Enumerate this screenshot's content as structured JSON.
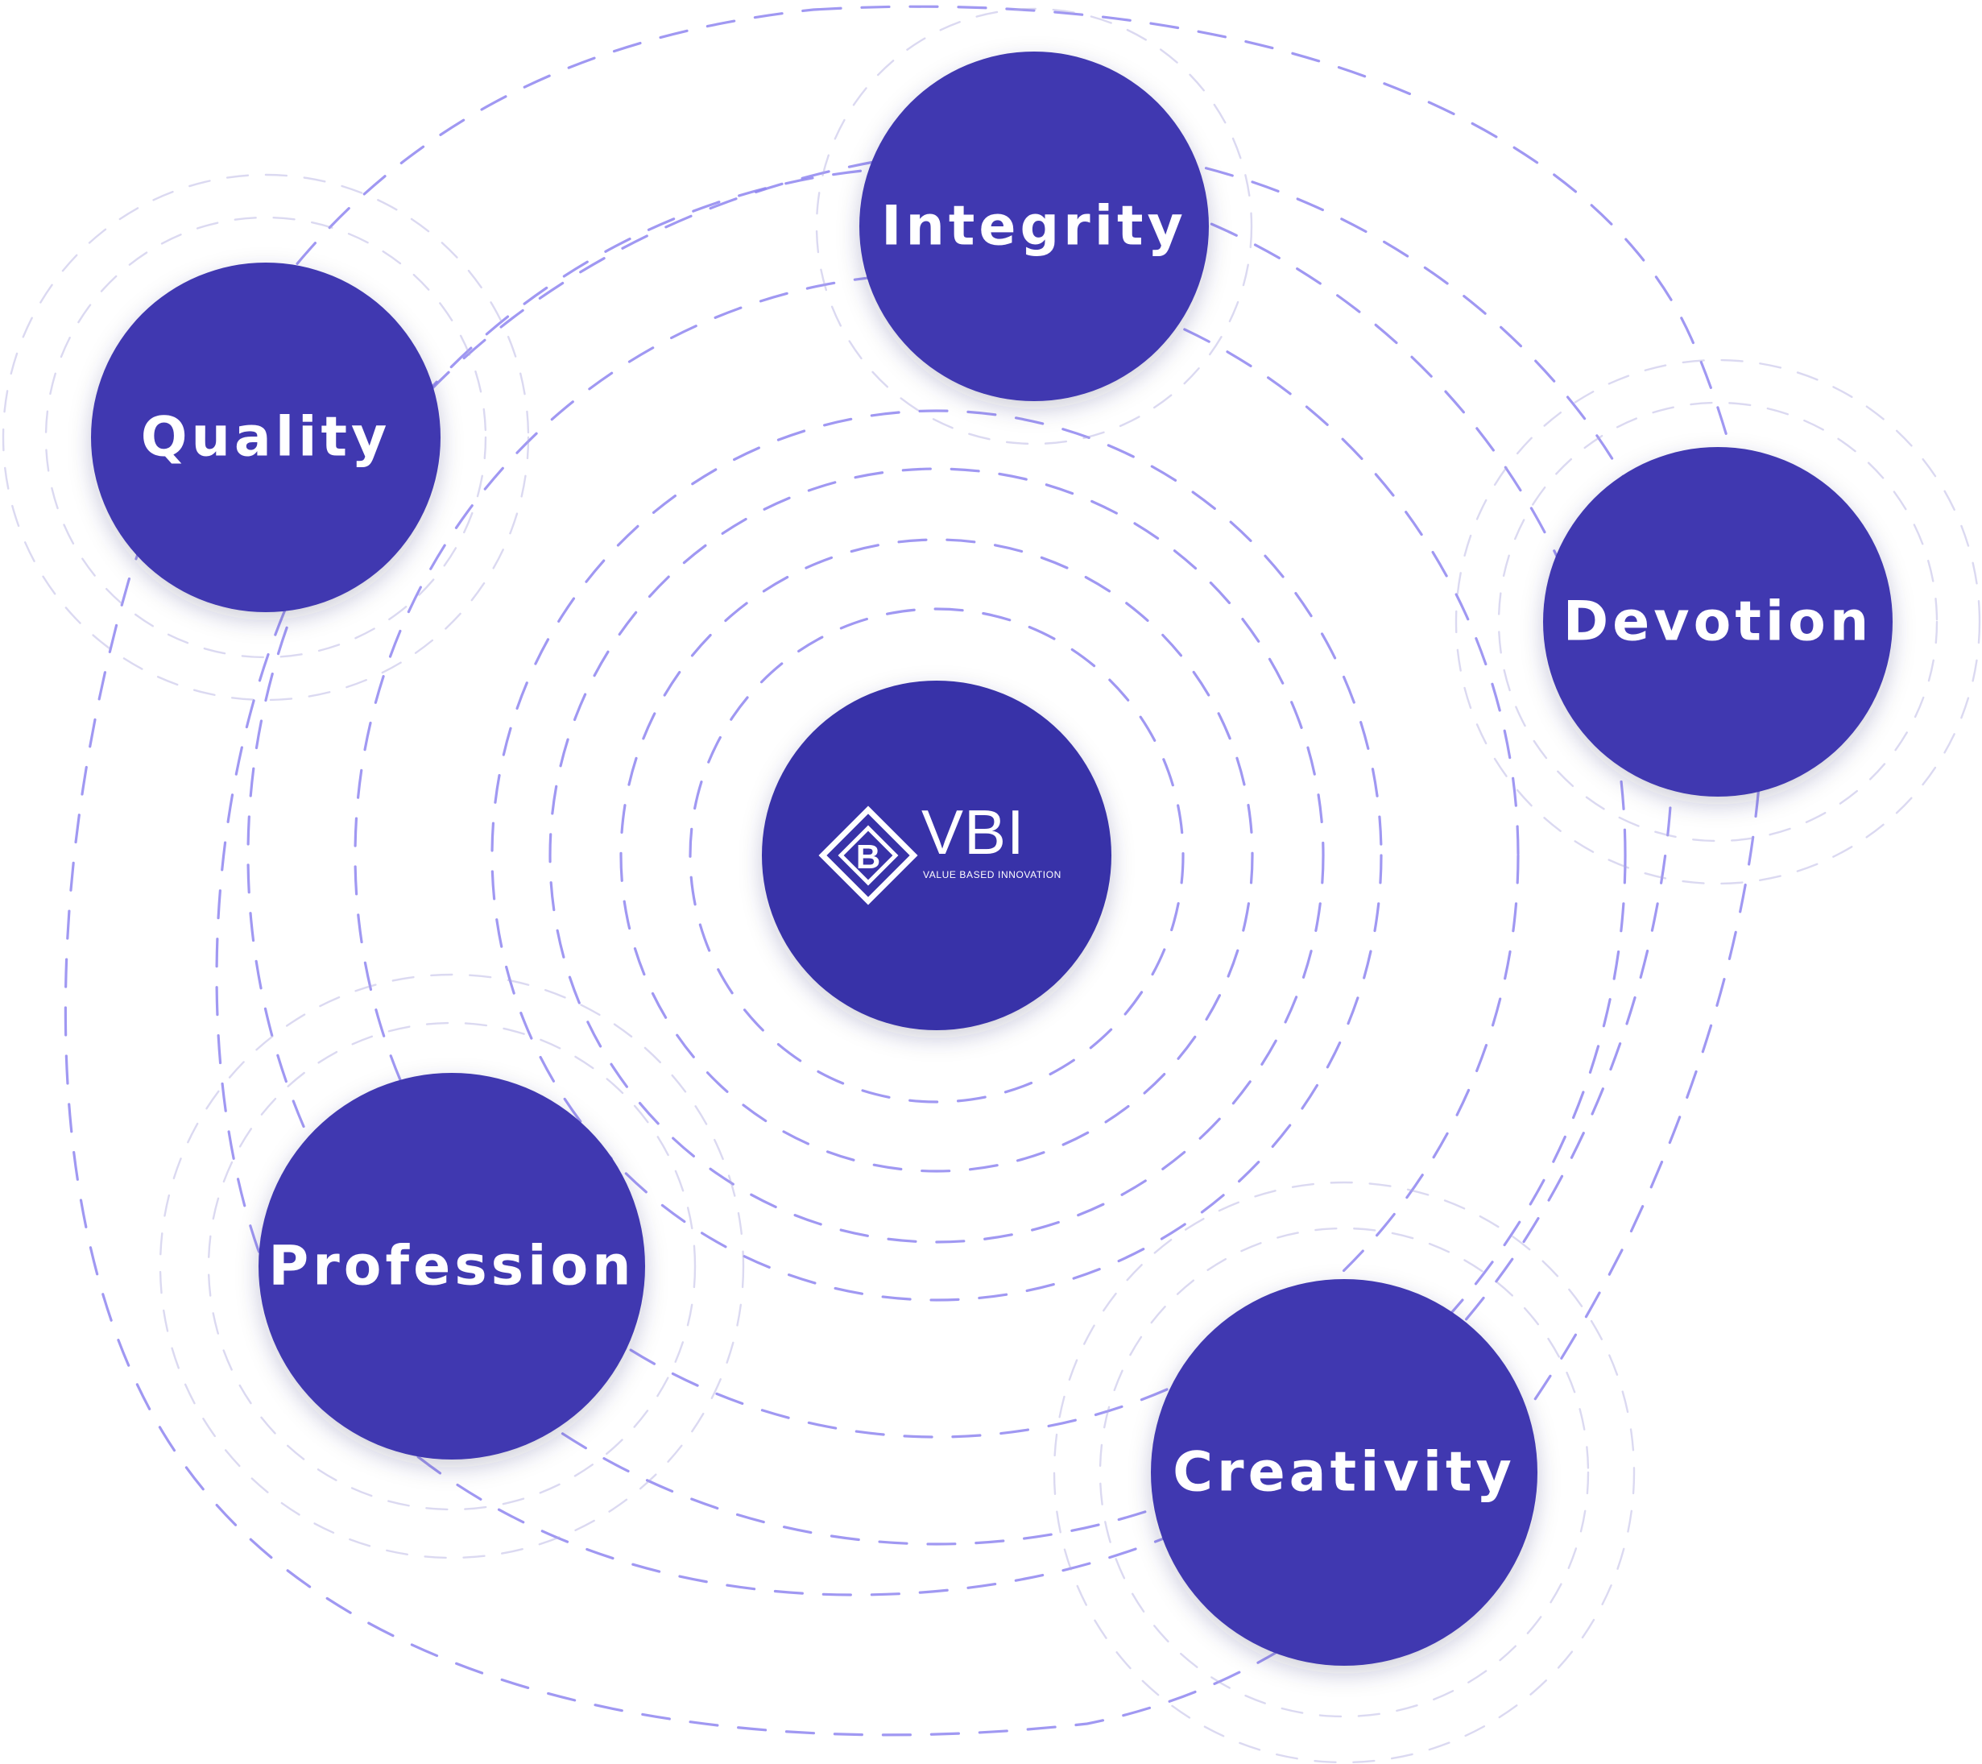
{
  "colors": {
    "node_fill": "#3f38b0",
    "center_fill": "#3730a8",
    "ring_stroke": "#8f86f0",
    "ring_stroke_faint": "#b0abdf",
    "label_text": "#ffffff",
    "background": "#ffffff"
  },
  "center": {
    "logo_text": "VBI",
    "tagline": "VALUE BASED INNOVATION",
    "logo_mark_icon": "vbi-diamond-logo-icon"
  },
  "values": [
    {
      "id": "quality",
      "label": "Quality"
    },
    {
      "id": "integrity",
      "label": "Integrity"
    },
    {
      "id": "devotion",
      "label": "Devotion"
    },
    {
      "id": "profession",
      "label": "Profession"
    },
    {
      "id": "creativity",
      "label": "Creativity"
    }
  ]
}
